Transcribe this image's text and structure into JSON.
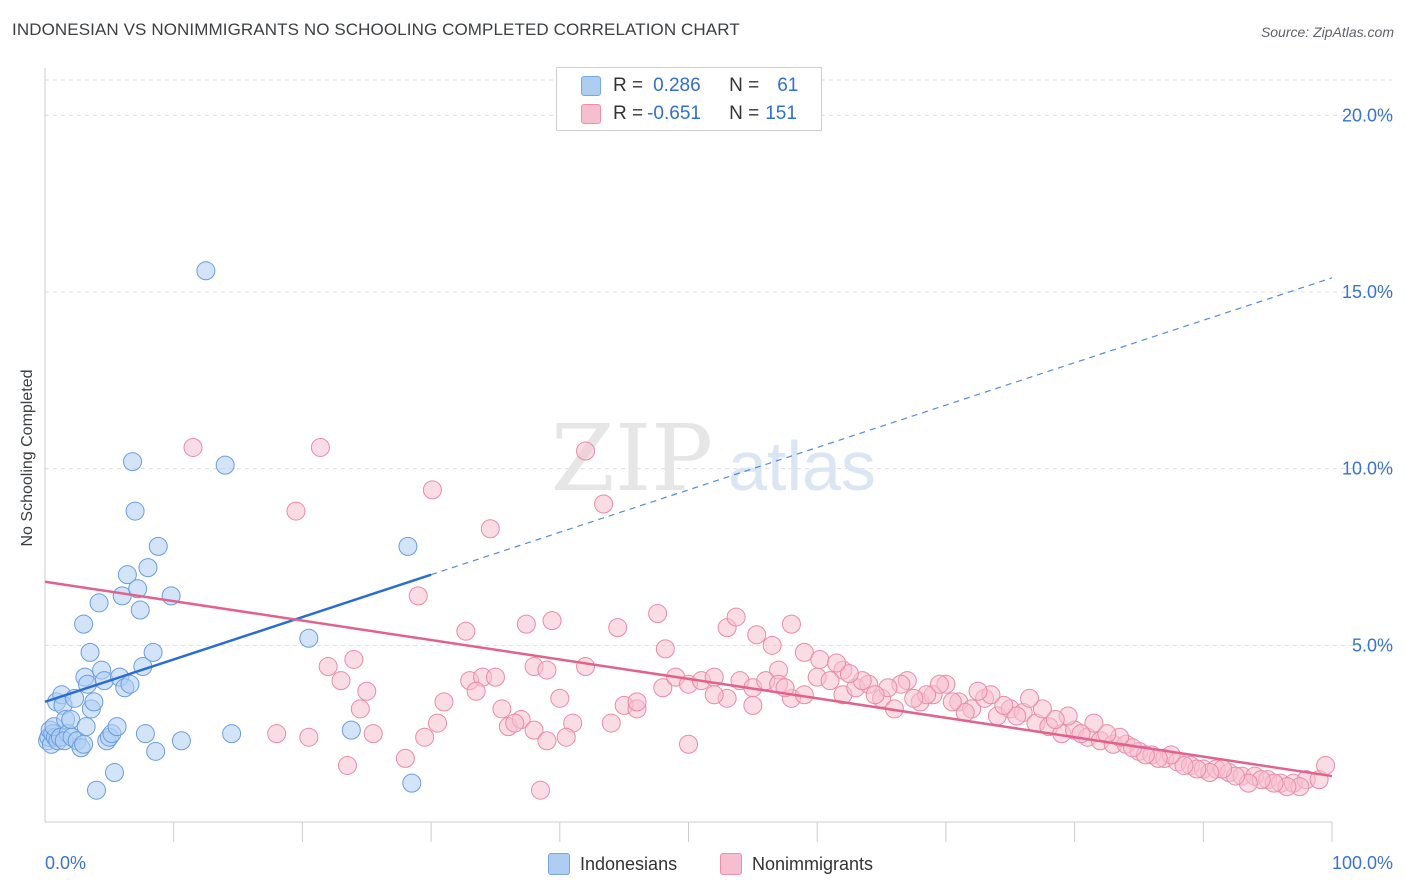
{
  "title": "INDONESIAN VS NONIMMIGRANTS NO SCHOOLING COMPLETED CORRELATION CHART",
  "source": "Source: ZipAtlas.com",
  "watermark": {
    "zip": "ZIP",
    "atlas": "atlas"
  },
  "legend": {
    "rows": [
      {
        "r_label": "R =",
        "r_value": "0.286",
        "n_label": "N =",
        "n_value": "61"
      },
      {
        "r_label": "R =",
        "r_value": "-0.651",
        "n_label": "N =",
        "n_value": "151"
      }
    ]
  },
  "colors": {
    "indonesians_fill": "#aecdf3",
    "indonesians_stroke": "#6a9de0",
    "indonesians_line": "#2b6dd1",
    "nonimmigrants_fill": "#f6bfd0",
    "nonimmigrants_stroke": "#ea8aa8",
    "nonimmigrants_line": "#e2628d",
    "tick_label": "#3a72d4",
    "grid": "#dddddd"
  },
  "chart_data": {
    "type": "scatter",
    "title": "INDONESIAN VS NONIMMIGRANTS NO SCHOOLING COMPLETED CORRELATION CHART",
    "xlabel": "",
    "ylabel": "No Schooling Completed",
    "xlim": [
      0,
      100
    ],
    "ylim": [
      0,
      21
    ],
    "x_tick_labels": [
      "0.0%",
      "100.0%"
    ],
    "y_ticks": [
      5,
      10,
      15,
      20
    ],
    "y_tick_labels": [
      "5.0%",
      "10.0%",
      "15.0%",
      "20.0%"
    ],
    "grid": "horizontal dashed",
    "legend_position": "top-center",
    "series": [
      {
        "name": "Indonesians",
        "r": 0.286,
        "n": 61,
        "trend": {
          "x": [
            0,
            30
          ],
          "y": [
            3.4,
            7.0
          ],
          "dashed_extension": {
            "x": [
              30,
              100
            ],
            "y": [
              7.0,
              15.4
            ]
          }
        },
        "points": [
          [
            0.2,
            2.3
          ],
          [
            0.3,
            2.4
          ],
          [
            0.4,
            2.6
          ],
          [
            0.5,
            2.2
          ],
          [
            0.6,
            2.5
          ],
          [
            0.8,
            2.4
          ],
          [
            1.0,
            2.3
          ],
          [
            0.7,
            2.7
          ],
          [
            0.9,
            3.4
          ],
          [
            1.2,
            2.4
          ],
          [
            1.3,
            3.6
          ],
          [
            1.4,
            3.3
          ],
          [
            1.6,
            2.9
          ],
          [
            1.8,
            2.5
          ],
          [
            1.5,
            2.3
          ],
          [
            2.0,
            2.9
          ],
          [
            2.1,
            2.4
          ],
          [
            2.3,
            3.5
          ],
          [
            2.5,
            2.3
          ],
          [
            2.8,
            2.1
          ],
          [
            3.0,
            2.2
          ],
          [
            3.1,
            4.1
          ],
          [
            3.2,
            2.7
          ],
          [
            3.3,
            3.9
          ],
          [
            3.5,
            4.8
          ],
          [
            3.6,
            3.2
          ],
          [
            3.8,
            3.4
          ],
          [
            4.0,
            0.9
          ],
          [
            4.2,
            6.2
          ],
          [
            4.4,
            4.3
          ],
          [
            4.6,
            4.0
          ],
          [
            4.8,
            2.3
          ],
          [
            5.0,
            2.4
          ],
          [
            5.2,
            2.5
          ],
          [
            3.0,
            5.6
          ],
          [
            5.4,
            1.4
          ],
          [
            5.6,
            2.7
          ],
          [
            5.8,
            4.1
          ],
          [
            6.0,
            6.4
          ],
          [
            6.2,
            3.8
          ],
          [
            6.4,
            7.0
          ],
          [
            6.6,
            3.9
          ],
          [
            6.8,
            10.2
          ],
          [
            7.0,
            8.8
          ],
          [
            7.2,
            6.6
          ],
          [
            7.4,
            6.0
          ],
          [
            7.6,
            4.4
          ],
          [
            7.8,
            2.5
          ],
          [
            8.0,
            7.2
          ],
          [
            8.4,
            4.8
          ],
          [
            8.6,
            2.0
          ],
          [
            8.8,
            7.8
          ],
          [
            9.8,
            6.4
          ],
          [
            10.6,
            2.3
          ],
          [
            12.5,
            15.6
          ],
          [
            14.0,
            10.1
          ],
          [
            14.5,
            2.5
          ],
          [
            20.5,
            5.2
          ],
          [
            23.8,
            2.6
          ],
          [
            28.2,
            7.8
          ],
          [
            28.5,
            1.1
          ]
        ]
      },
      {
        "name": "Nonimmigrants",
        "r": -0.651,
        "n": 151,
        "trend": {
          "x": [
            0,
            100
          ],
          "y": [
            6.8,
            1.3
          ]
        },
        "points": [
          [
            11.5,
            10.6
          ],
          [
            21.4,
            10.6
          ],
          [
            19.5,
            8.8
          ],
          [
            30.1,
            9.4
          ],
          [
            34.6,
            8.3
          ],
          [
            43.4,
            9.0
          ],
          [
            42.0,
            10.5
          ],
          [
            29.0,
            6.4
          ],
          [
            32.7,
            5.4
          ],
          [
            37.4,
            5.6
          ],
          [
            39.4,
            5.7
          ],
          [
            44.5,
            5.5
          ],
          [
            47.6,
            5.9
          ],
          [
            48.2,
            4.9
          ],
          [
            53.0,
            5.5
          ],
          [
            53.7,
            5.8
          ],
          [
            55.3,
            5.3
          ],
          [
            56.5,
            5.0
          ],
          [
            58.0,
            5.6
          ],
          [
            59.0,
            4.8
          ],
          [
            60.2,
            4.6
          ],
          [
            57.0,
            4.3
          ],
          [
            62.0,
            4.3
          ],
          [
            24.0,
            4.6
          ],
          [
            25.0,
            3.7
          ],
          [
            24.5,
            3.2
          ],
          [
            22.0,
            4.4
          ],
          [
            23.0,
            4.0
          ],
          [
            33.0,
            4.0
          ],
          [
            34.0,
            4.1
          ],
          [
            35.0,
            4.1
          ],
          [
            38.0,
            4.4
          ],
          [
            39.0,
            4.3
          ],
          [
            40.0,
            3.5
          ],
          [
            41.0,
            2.8
          ],
          [
            42.0,
            4.4
          ],
          [
            45.0,
            3.3
          ],
          [
            46.0,
            3.2
          ],
          [
            48.0,
            3.8
          ],
          [
            49.0,
            4.1
          ],
          [
            50.0,
            3.9
          ],
          [
            51.0,
            4.0
          ],
          [
            52.0,
            4.1
          ],
          [
            53.0,
            3.5
          ],
          [
            54.0,
            4.0
          ],
          [
            55.0,
            3.8
          ],
          [
            56.0,
            4.0
          ],
          [
            57.0,
            3.9
          ],
          [
            58.0,
            3.5
          ],
          [
            59.0,
            3.6
          ],
          [
            60.0,
            4.1
          ],
          [
            61.0,
            4.0
          ],
          [
            62.0,
            3.6
          ],
          [
            63.0,
            3.8
          ],
          [
            64.0,
            3.9
          ],
          [
            65.0,
            3.5
          ],
          [
            66.0,
            3.2
          ],
          [
            67.0,
            4.0
          ],
          [
            68.0,
            3.4
          ],
          [
            69.0,
            3.6
          ],
          [
            70.0,
            3.9
          ],
          [
            71.0,
            3.4
          ],
          [
            72.0,
            3.2
          ],
          [
            73.0,
            3.5
          ],
          [
            74.0,
            3.0
          ],
          [
            75.0,
            3.2
          ],
          [
            76.0,
            3.1
          ],
          [
            77.0,
            2.8
          ],
          [
            78.0,
            2.7
          ],
          [
            79.0,
            2.5
          ],
          [
            80.0,
            2.6
          ],
          [
            81.0,
            2.4
          ],
          [
            82.0,
            2.3
          ],
          [
            83.0,
            2.2
          ],
          [
            84.0,
            2.2
          ],
          [
            85.0,
            2.0
          ],
          [
            86.0,
            1.9
          ],
          [
            87.0,
            1.8
          ],
          [
            88.0,
            1.7
          ],
          [
            89.0,
            1.6
          ],
          [
            90.0,
            1.5
          ],
          [
            91.0,
            1.5
          ],
          [
            92.0,
            1.4
          ],
          [
            93.0,
            1.3
          ],
          [
            94.0,
            1.3
          ],
          [
            95.0,
            1.2
          ],
          [
            96.0,
            1.1
          ],
          [
            97.0,
            1.1
          ],
          [
            98.0,
            1.2
          ],
          [
            99.0,
            1.2
          ],
          [
            99.5,
            1.6
          ],
          [
            97.5,
            1.0
          ],
          [
            96.5,
            1.0
          ],
          [
            95.5,
            1.1
          ],
          [
            94.5,
            1.2
          ],
          [
            93.5,
            1.1
          ],
          [
            92.5,
            1.3
          ],
          [
            91.5,
            1.5
          ],
          [
            90.5,
            1.4
          ],
          [
            89.5,
            1.5
          ],
          [
            88.5,
            1.6
          ],
          [
            87.5,
            1.9
          ],
          [
            86.5,
            1.8
          ],
          [
            85.5,
            1.9
          ],
          [
            84.5,
            2.1
          ],
          [
            83.5,
            2.4
          ],
          [
            82.5,
            2.5
          ],
          [
            81.5,
            2.8
          ],
          [
            80.5,
            2.5
          ],
          [
            79.5,
            3.0
          ],
          [
            78.5,
            2.9
          ],
          [
            77.5,
            3.2
          ],
          [
            76.5,
            3.5
          ],
          [
            75.5,
            3.0
          ],
          [
            74.5,
            3.3
          ],
          [
            73.5,
            3.6
          ],
          [
            72.5,
            3.7
          ],
          [
            71.5,
            3.1
          ],
          [
            70.5,
            3.4
          ],
          [
            69.5,
            3.9
          ],
          [
            68.5,
            3.6
          ],
          [
            67.5,
            3.5
          ],
          [
            66.5,
            3.9
          ],
          [
            65.5,
            3.8
          ],
          [
            64.5,
            3.6
          ],
          [
            63.5,
            4.0
          ],
          [
            62.5,
            4.2
          ],
          [
            61.5,
            4.5
          ],
          [
            18.0,
            2.5
          ],
          [
            20.5,
            2.4
          ],
          [
            23.5,
            1.6
          ],
          [
            25.5,
            2.5
          ],
          [
            28.0,
            1.8
          ],
          [
            29.5,
            2.4
          ],
          [
            30.5,
            2.8
          ],
          [
            36.0,
            2.7
          ],
          [
            37.0,
            2.9
          ],
          [
            38.0,
            2.6
          ],
          [
            39.0,
            2.3
          ],
          [
            40.5,
            2.4
          ],
          [
            44.0,
            2.8
          ],
          [
            50.0,
            2.2
          ],
          [
            38.5,
            0.9
          ],
          [
            46.0,
            3.4
          ],
          [
            52.0,
            3.6
          ],
          [
            55.0,
            3.3
          ],
          [
            57.5,
            3.8
          ],
          [
            35.5,
            3.2
          ],
          [
            36.5,
            2.8
          ],
          [
            33.5,
            3.7
          ],
          [
            31.0,
            3.4
          ]
        ]
      }
    ]
  },
  "bottom_legend": {
    "indonesians": "Indonesians",
    "nonimmigrants": "Nonimmigrants"
  }
}
